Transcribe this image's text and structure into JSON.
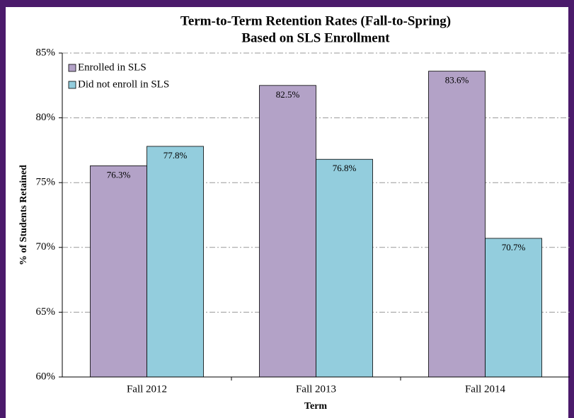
{
  "chart_data": {
    "type": "bar",
    "title": "Term-to-Term Retention Rates (Fall-to-Spring)",
    "subtitle": "Based on SLS Enrollment",
    "x_label": "Term",
    "y_label": "% of Students Retained",
    "categories": [
      "Fall 2012",
      "Fall 2013",
      "Fall 2014"
    ],
    "series": [
      {
        "name": "Enrolled in SLS",
        "color": "#b3a2c7",
        "values": [
          76.3,
          82.5,
          83.6
        ],
        "value_labels": [
          "76.3%",
          "82.5%",
          "83.6%"
        ]
      },
      {
        "name": "Did not enroll in SLS",
        "color": "#93cddd",
        "values": [
          77.8,
          76.8,
          70.7
        ],
        "value_labels": [
          "77.8%",
          "76.8%",
          "70.7%"
        ]
      }
    ],
    "ylim": [
      60,
      85
    ],
    "yticks": [
      {
        "value": 60,
        "label": "60%"
      },
      {
        "value": 65,
        "label": "65%"
      },
      {
        "value": 70,
        "label": "70%"
      },
      {
        "value": 75,
        "label": "75%"
      },
      {
        "value": 80,
        "label": "80%"
      },
      {
        "value": 85,
        "label": "85%"
      }
    ],
    "grid": true,
    "legend": "top-left"
  }
}
